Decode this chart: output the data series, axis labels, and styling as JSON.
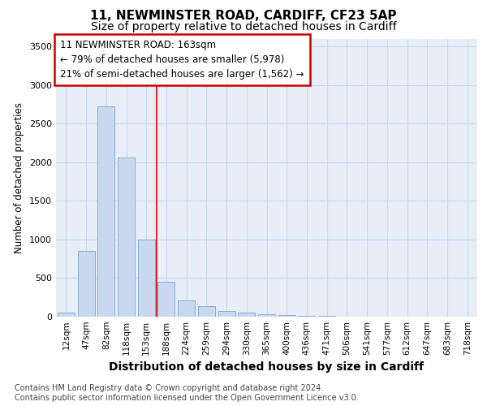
{
  "title1": "11, NEWMINSTER ROAD, CARDIFF, CF23 5AP",
  "title2": "Size of property relative to detached houses in Cardiff",
  "xlabel": "Distribution of detached houses by size in Cardiff",
  "ylabel": "Number of detached properties",
  "categories": [
    "12sqm",
    "47sqm",
    "82sqm",
    "118sqm",
    "153sqm",
    "188sqm",
    "224sqm",
    "259sqm",
    "294sqm",
    "330sqm",
    "365sqm",
    "400sqm",
    "436sqm",
    "471sqm",
    "506sqm",
    "541sqm",
    "577sqm",
    "612sqm",
    "647sqm",
    "683sqm",
    "718sqm"
  ],
  "values": [
    55,
    855,
    2720,
    2060,
    1000,
    450,
    210,
    140,
    75,
    55,
    30,
    20,
    12,
    8,
    5,
    3,
    2,
    2,
    1,
    1,
    1
  ],
  "bar_color": "#c8d8ef",
  "bar_edgecolor": "#7ba3cc",
  "grid_color": "#c8d8ef",
  "plot_bg_color": "#e8eef8",
  "fig_bg_color": "#ffffff",
  "redline_x": 4.5,
  "annotation_text": "11 NEWMINSTER ROAD: 163sqm\n← 79% of detached houses are smaller (5,978)\n21% of semi-detached houses are larger (1,562) →",
  "annotation_box_edgecolor": "#cc0000",
  "ylim": [
    0,
    3600
  ],
  "yticks": [
    0,
    500,
    1000,
    1500,
    2000,
    2500,
    3000,
    3500
  ],
  "footer": "Contains HM Land Registry data © Crown copyright and database right 2024.\nContains public sector information licensed under the Open Government Licence v3.0.",
  "title1_fontsize": 11,
  "title2_fontsize": 10,
  "xlabel_fontsize": 10,
  "ylabel_fontsize": 8.5,
  "tick_fontsize": 8,
  "annotation_fontsize": 8.5,
  "footer_fontsize": 7
}
